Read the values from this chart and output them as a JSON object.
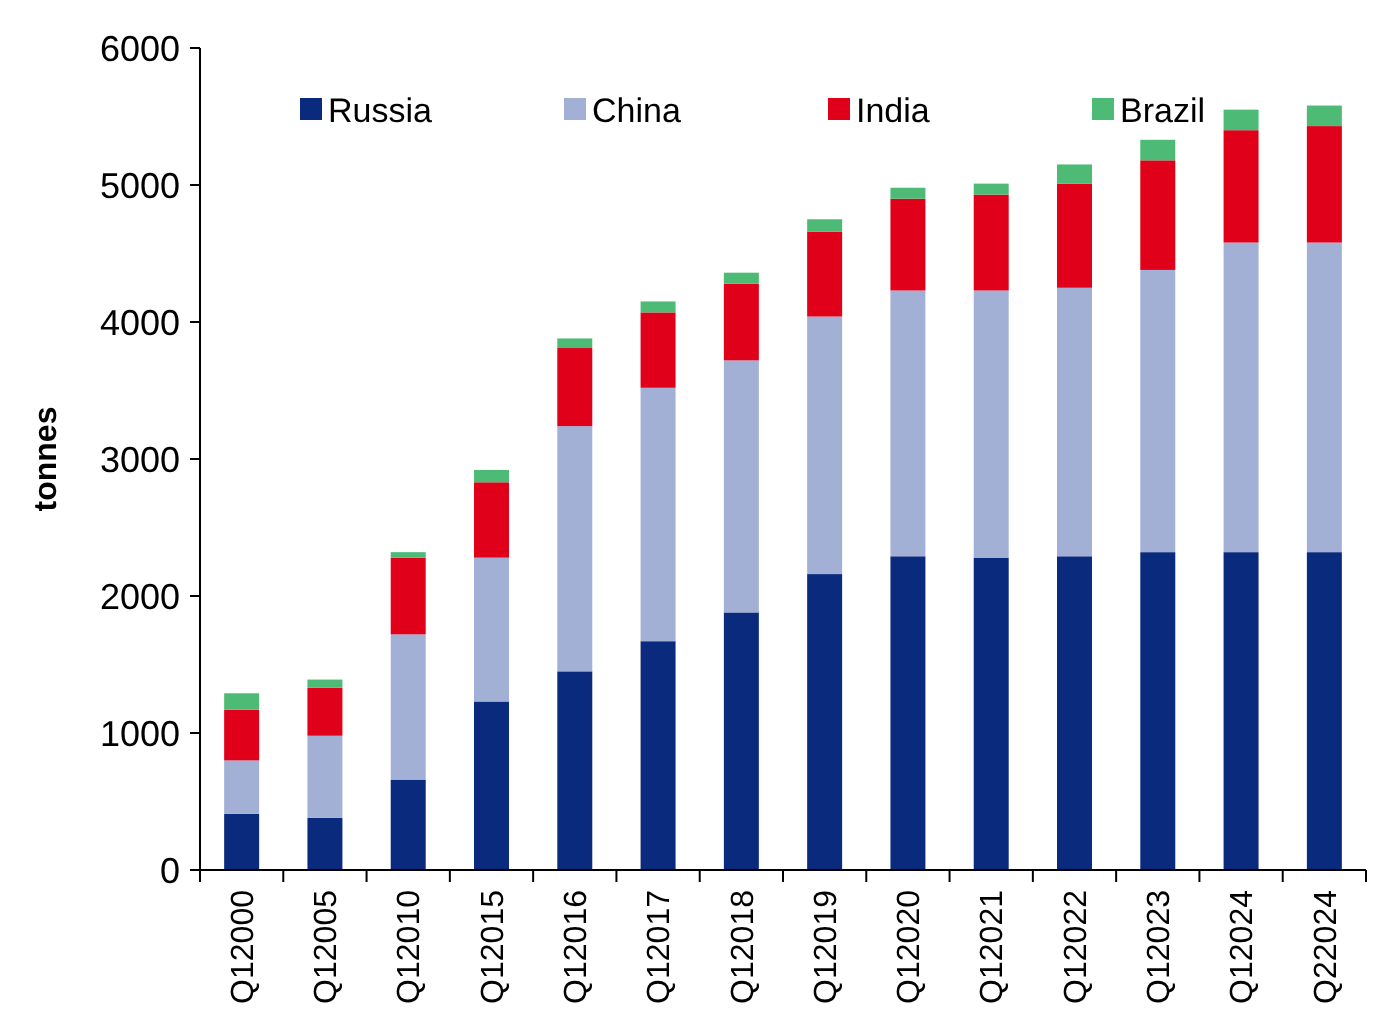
{
  "chart_data": {
    "type": "bar",
    "stacked": true,
    "ylabel": "tonnes",
    "categories": [
      "Q12000",
      "Q12005",
      "Q12010",
      "Q12015",
      "Q12016",
      "Q12017",
      "Q12018",
      "Q12019",
      "Q12020",
      "Q12021",
      "Q12022",
      "Q12023",
      "Q12024",
      "Q22024"
    ],
    "series": [
      {
        "name": "Russia",
        "color": "#0a2a7e",
        "values": [
          410,
          380,
          660,
          1230,
          1450,
          1670,
          1880,
          2160,
          2290,
          2280,
          2290,
          2320,
          2320,
          2320
        ]
      },
      {
        "name": "China",
        "color": "#a3b0d6",
        "values": [
          390,
          600,
          1060,
          1050,
          1790,
          1850,
          1840,
          1880,
          1940,
          1950,
          1960,
          2060,
          2260,
          2260
        ]
      },
      {
        "name": "India",
        "color": "#e0001a",
        "values": [
          370,
          350,
          560,
          550,
          570,
          550,
          560,
          620,
          670,
          700,
          760,
          800,
          820,
          850
        ]
      },
      {
        "name": "Brazil",
        "color": "#4dbb76",
        "values": [
          120,
          60,
          40,
          90,
          70,
          80,
          80,
          90,
          80,
          80,
          140,
          150,
          150,
          150
        ]
      }
    ],
    "ylim": [
      0,
      6000
    ],
    "yticks": [
      0,
      1000,
      2000,
      3000,
      4000,
      5000,
      6000
    ],
    "grid": false,
    "legend": "top"
  }
}
